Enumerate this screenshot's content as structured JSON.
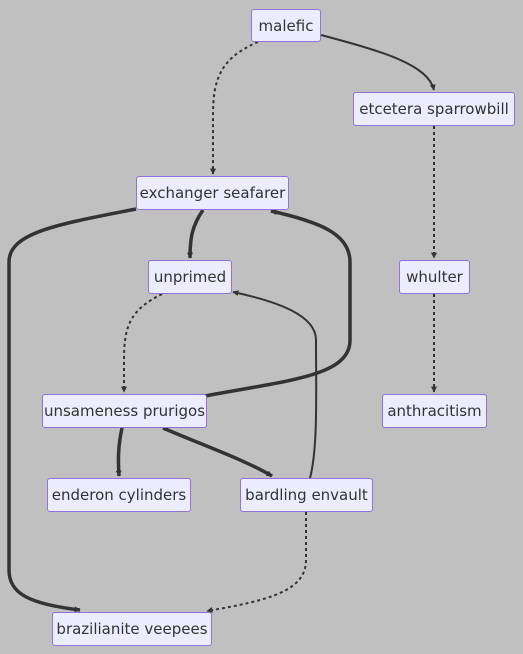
{
  "diagram": {
    "type": "flowchart",
    "colors": {
      "background": "#c0c0c0",
      "node_fill": "#ececff",
      "node_border": "#9370db",
      "edge": "#333333",
      "text": "#333333"
    },
    "nodes": [
      {
        "id": "malefic",
        "label": "malefic"
      },
      {
        "id": "etcetera",
        "label": "etcetera sparrowbill"
      },
      {
        "id": "exchanger",
        "label": "exchanger seafarer"
      },
      {
        "id": "unprimed",
        "label": "unprimed"
      },
      {
        "id": "whulter",
        "label": "whulter"
      },
      {
        "id": "unsameness",
        "label": "unsameness prurigos"
      },
      {
        "id": "anthracitism",
        "label": "anthracitism"
      },
      {
        "id": "enderon",
        "label": "enderon cylinders"
      },
      {
        "id": "bardling",
        "label": "bardling envault"
      },
      {
        "id": "brazilianite",
        "label": "brazilianite veepees"
      }
    ],
    "edges": [
      {
        "from": "malefic",
        "to": "etcetera",
        "style": "solid"
      },
      {
        "from": "malefic",
        "to": "exchanger",
        "style": "dotted"
      },
      {
        "from": "etcetera",
        "to": "whulter",
        "style": "dotted"
      },
      {
        "from": "whulter",
        "to": "anthracitism",
        "style": "dotted"
      },
      {
        "from": "exchanger",
        "to": "unprimed",
        "style": "thick"
      },
      {
        "from": "exchanger",
        "to": "brazilianite",
        "style": "thick"
      },
      {
        "from": "unprimed",
        "to": "unsameness",
        "style": "dotted"
      },
      {
        "from": "unsameness",
        "to": "exchanger",
        "style": "thick"
      },
      {
        "from": "unsameness",
        "to": "enderon",
        "style": "thick"
      },
      {
        "from": "unsameness",
        "to": "bardling",
        "style": "thick"
      },
      {
        "from": "bardling",
        "to": "unprimed",
        "style": "solid"
      },
      {
        "from": "bardling",
        "to": "brazilianite",
        "style": "dotted"
      }
    ]
  }
}
